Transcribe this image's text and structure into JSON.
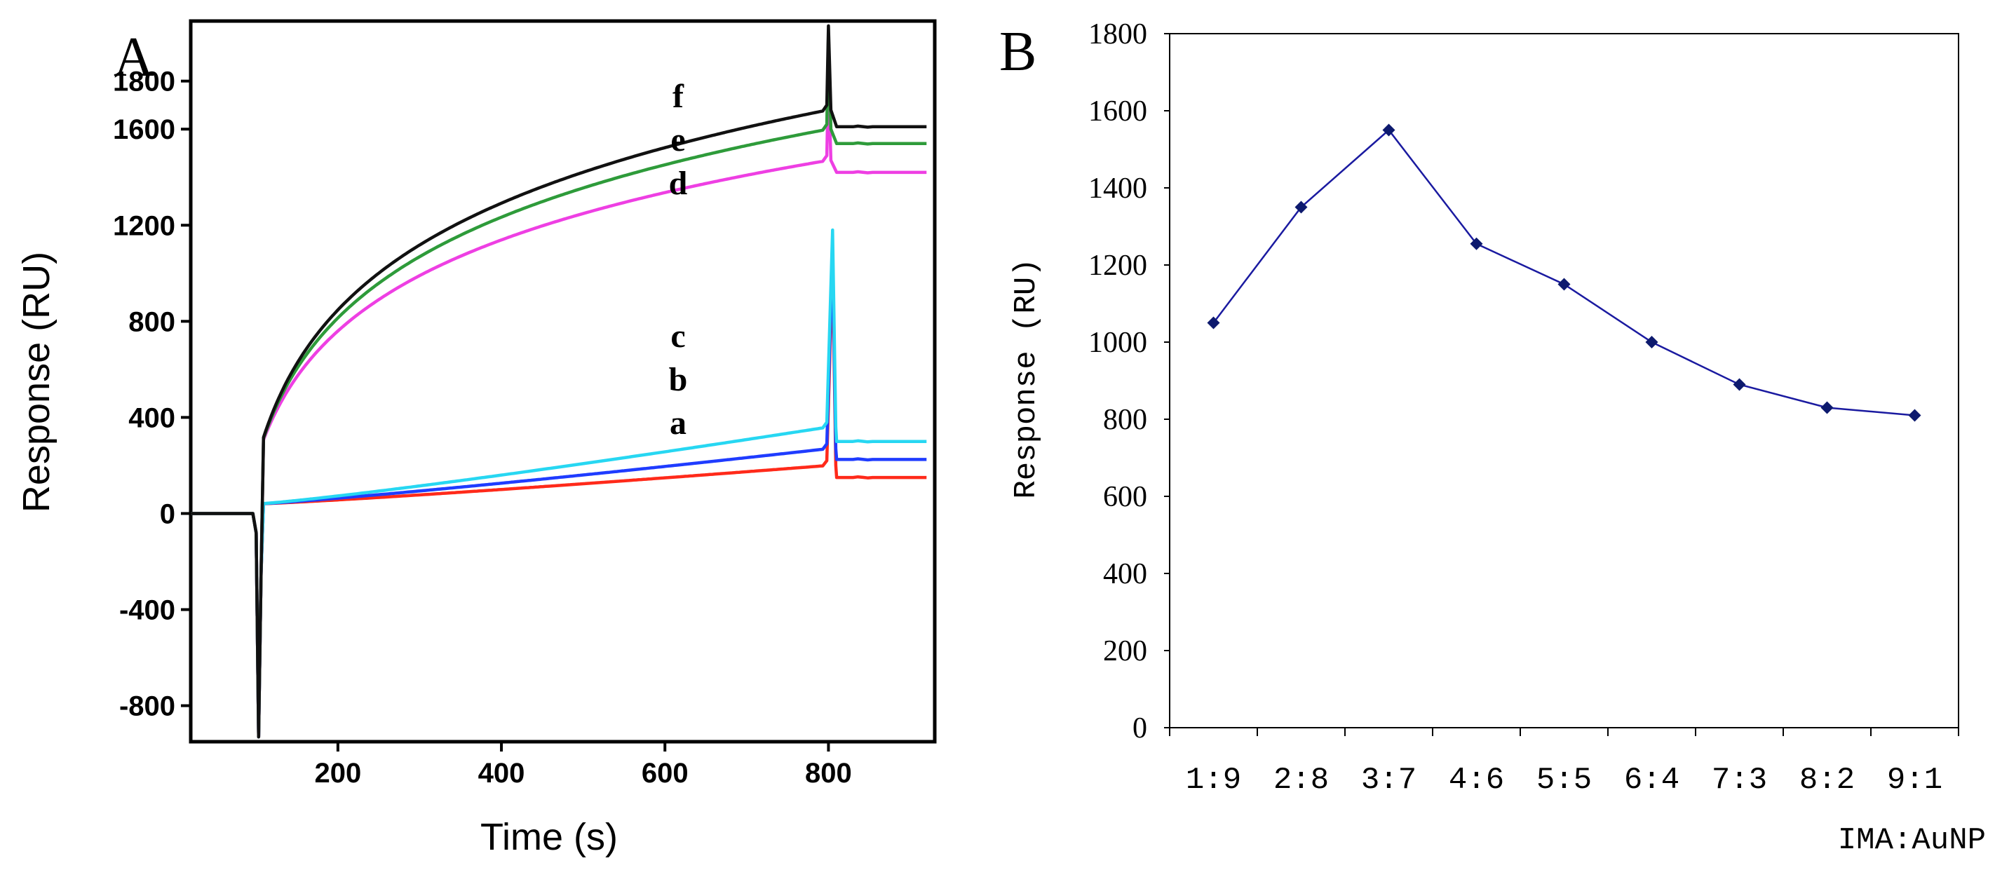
{
  "chart_data": [
    {
      "panel": "A",
      "type": "line",
      "xlabel": "Time (s)",
      "ylabel": "Response (RU)",
      "xlim": [
        20,
        930
      ],
      "ylim": [
        -950,
        2050
      ],
      "xticks": [
        "200",
        "400",
        "600",
        "800"
      ],
      "yticks": [
        "-800",
        "-400",
        "0",
        "400",
        "800",
        "1200",
        "1600",
        "1800"
      ],
      "series": [
        {
          "name": "a",
          "color": "#ff2a1a",
          "baseline_end": 200,
          "post_level": 150,
          "peak": 1050
        },
        {
          "name": "b",
          "color": "#1f3cff",
          "baseline_end": 270,
          "post_level": 225,
          "peak": 1100
        },
        {
          "name": "c",
          "color": "#27d7f2",
          "baseline_end": 360,
          "post_level": 300,
          "peak": 1180
        },
        {
          "name": "d",
          "color": "#ee3fe3",
          "baseline_end": 1470,
          "post_level": 1420,
          "peak": 1820
        },
        {
          "name": "e",
          "color": "#2e9b3a",
          "baseline_end": 1600,
          "post_level": 1540,
          "peak": 2000
        },
        {
          "name": "f",
          "color": "#111111",
          "baseline_end": 1680,
          "post_level": 1610,
          "peak": 2030
        }
      ],
      "curve_labels_upper": [
        "f",
        "e",
        "d"
      ],
      "curve_labels_lower": [
        "c",
        "b",
        "a"
      ],
      "injection_time": 103,
      "dip": -930,
      "end_time": 800
    },
    {
      "panel": "B",
      "type": "line",
      "xlabel": "IMA:AuNP",
      "ylabel": "Response (RU)",
      "ylim": [
        0,
        1800
      ],
      "yticks": [
        "0",
        "200",
        "400",
        "600",
        "800",
        "1000",
        "1200",
        "1400",
        "1600",
        "1800"
      ],
      "categories": [
        "1:9",
        "2:8",
        "3:7",
        "4:6",
        "5:5",
        "6:4",
        "7:3",
        "8:2",
        "9:1"
      ],
      "values": [
        1050,
        1350,
        1550,
        1255,
        1150,
        1000,
        890,
        830,
        810
      ],
      "line_color": "#1a1aa0",
      "marker_color": "#0d1a6e"
    }
  ]
}
